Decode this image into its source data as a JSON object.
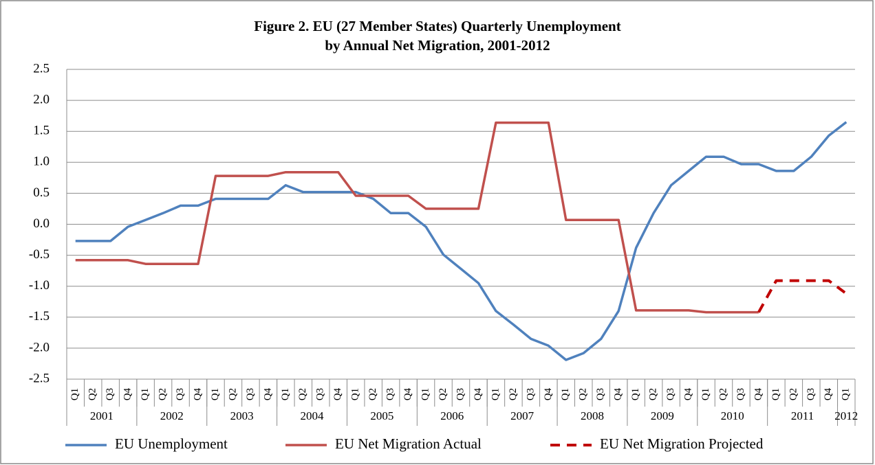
{
  "chart_data": {
    "type": "line",
    "title": [
      "Figure 2. EU (27 Member States) Quarterly Unemployment",
      "by Annual Net Migration, 2001-2012"
    ],
    "categories": [
      "Q1",
      "Q2",
      "Q3",
      "Q4",
      "Q1",
      "Q2",
      "Q3",
      "Q4",
      "Q1",
      "Q2",
      "Q3",
      "Q4",
      "Q1",
      "Q2",
      "Q3",
      "Q4",
      "Q1",
      "Q2",
      "Q3",
      "Q4",
      "Q1",
      "Q2",
      "Q3",
      "Q4",
      "Q1",
      "Q2",
      "Q3",
      "Q4",
      "Q1",
      "Q2",
      "Q3",
      "Q4",
      "Q1",
      "Q2",
      "Q3",
      "Q4",
      "Q1",
      "Q2",
      "Q3",
      "Q4",
      "Q1",
      "Q2",
      "Q3",
      "Q4",
      "Q1"
    ],
    "years": [
      "2001",
      "2002",
      "2003",
      "2004",
      "2005",
      "2006",
      "2007",
      "2008",
      "2009",
      "2010",
      "2011",
      "2012"
    ],
    "ylim": [
      -2.5,
      2.5
    ],
    "yticks": [
      -2.5,
      {
        "value": -2,
        "label": "-2.0"
      },
      -1.5,
      {
        "value": -1,
        "label": "-1.0"
      },
      -0.5,
      {
        "value": 0,
        "label": "0.0"
      },
      0.5,
      {
        "value": 1,
        "label": "1.0"
      },
      1.5,
      {
        "value": 2,
        "label": "2.0"
      },
      2.5
    ],
    "grid": true,
    "legend": "bottom",
    "series": [
      {
        "name": "EU Unemployment",
        "color": "#4f81bd",
        "dash": false,
        "values": [
          -0.27,
          -0.27,
          -0.27,
          -0.04,
          0.07,
          0.18,
          0.3,
          0.3,
          0.41,
          0.41,
          0.41,
          0.41,
          0.63,
          0.52,
          0.52,
          0.52,
          0.52,
          0.41,
          0.18,
          0.18,
          -0.04,
          -0.49,
          -0.72,
          -0.95,
          -1.4,
          -1.62,
          -1.85,
          -1.96,
          -2.19,
          -2.08,
          -1.85,
          -1.4,
          -0.38,
          0.18,
          0.63,
          0.86,
          1.09,
          1.09,
          0.97,
          0.97,
          0.86,
          0.86,
          1.09,
          1.43,
          1.65
        ]
      },
      {
        "name": "EU Net Migration Actual",
        "color": "#c0504d",
        "dash": false,
        "values": [
          -0.58,
          -0.58,
          -0.58,
          -0.58,
          -0.64,
          -0.64,
          -0.64,
          -0.64,
          0.78,
          0.78,
          0.78,
          0.78,
          0.84,
          0.84,
          0.84,
          0.84,
          0.46,
          0.46,
          0.46,
          0.46,
          0.25,
          0.25,
          0.25,
          0.25,
          1.64,
          1.64,
          1.64,
          1.64,
          0.07,
          0.07,
          0.07,
          0.07,
          -1.39,
          -1.39,
          -1.39,
          -1.39,
          -1.42,
          -1.42,
          -1.42,
          -1.42,
          null,
          null,
          null,
          null,
          null
        ]
      },
      {
        "name": "EU Net Migration Projected",
        "color": "#c00000",
        "dash": true,
        "values": [
          null,
          null,
          null,
          null,
          null,
          null,
          null,
          null,
          null,
          null,
          null,
          null,
          null,
          null,
          null,
          null,
          null,
          null,
          null,
          null,
          null,
          null,
          null,
          null,
          null,
          null,
          null,
          null,
          null,
          null,
          null,
          null,
          null,
          null,
          null,
          null,
          null,
          null,
          null,
          -1.42,
          -0.91,
          -0.91,
          -0.91,
          -0.91,
          -1.12
        ]
      }
    ]
  }
}
